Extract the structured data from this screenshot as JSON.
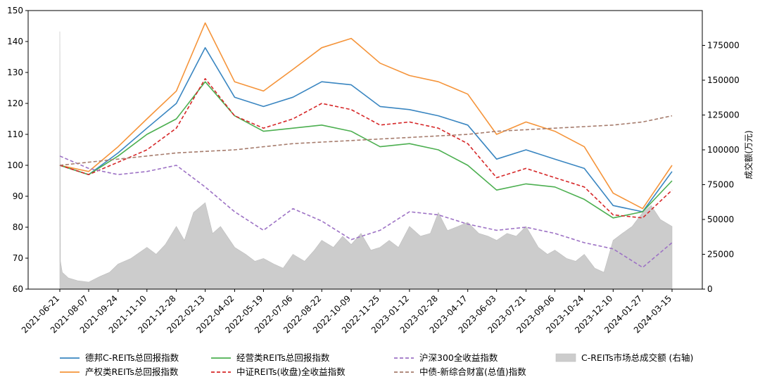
{
  "chart_data": {
    "type": "line",
    "title": "",
    "xlabel": "",
    "ylabel_left": "",
    "ylabel_right": "成交额(万元)",
    "x_ticks": [
      "2021-06-21",
      "2021-08-07",
      "2021-09-24",
      "2021-11-10",
      "2021-12-28",
      "2022-02-13",
      "2022-04-02",
      "2022-05-19",
      "2022-07-06",
      "2022-08-22",
      "2022-10-09",
      "2022-11-25",
      "2023-01-12",
      "2023-02-28",
      "2023-04-17",
      "2023-06-03",
      "2023-07-21",
      "2023-09-06",
      "2023-10-24",
      "2023-12-10",
      "2024-01-27",
      "2024-03-15"
    ],
    "y_left": {
      "min": 60,
      "max": 150,
      "ticks": [
        60,
        70,
        80,
        90,
        100,
        110,
        120,
        130,
        140,
        150
      ]
    },
    "y_right": {
      "min": 0,
      "max": 200000,
      "ticks": [
        0,
        25000,
        50000,
        75000,
        100000,
        125000,
        150000,
        175000
      ]
    },
    "legend_position": "bottom",
    "series": [
      {
        "name": "德邦C-REITs总回报指数",
        "color": "#3a86c1",
        "style": "solid",
        "x": [
          "2021-06-21",
          "2021-08-07",
          "2021-09-24",
          "2021-11-10",
          "2021-12-28",
          "2022-02-13",
          "2022-04-02",
          "2022-05-19",
          "2022-07-06",
          "2022-08-22",
          "2022-10-09",
          "2022-11-25",
          "2023-01-12",
          "2023-02-28",
          "2023-04-17",
          "2023-06-03",
          "2023-07-21",
          "2023-09-06",
          "2023-10-24",
          "2023-12-10",
          "2024-01-27",
          "2024-03-15"
        ],
        "y": [
          100,
          97,
          104,
          112,
          120,
          138,
          122,
          119,
          122,
          127,
          126,
          119,
          118,
          116,
          113,
          102,
          105,
          102,
          99,
          87,
          85,
          98
        ]
      },
      {
        "name": "产权类REITs总回报指数",
        "color": "#f5943a",
        "style": "solid",
        "x": [
          "2021-06-21",
          "2021-08-07",
          "2021-09-24",
          "2021-11-10",
          "2021-12-28",
          "2022-02-13",
          "2022-04-02",
          "2022-05-19",
          "2022-07-06",
          "2022-08-22",
          "2022-10-09",
          "2022-11-25",
          "2023-01-12",
          "2023-02-28",
          "2023-04-17",
          "2023-06-03",
          "2023-07-21",
          "2023-09-06",
          "2023-10-24",
          "2023-12-10",
          "2024-01-27",
          "2024-03-15"
        ],
        "y": [
          100,
          98,
          106,
          115,
          124,
          146,
          127,
          124,
          131,
          138,
          141,
          133,
          129,
          127,
          123,
          110,
          114,
          111,
          106,
          91,
          86,
          100
        ]
      },
      {
        "name": "经营类REITs总回报指数",
        "color": "#4caf50",
        "style": "solid",
        "x": [
          "2021-06-21",
          "2021-08-07",
          "2021-09-24",
          "2021-11-10",
          "2021-12-28",
          "2022-02-13",
          "2022-04-02",
          "2022-05-19",
          "2022-07-06",
          "2022-08-22",
          "2022-10-09",
          "2022-11-25",
          "2023-01-12",
          "2023-02-28",
          "2023-04-17",
          "2023-06-03",
          "2023-07-21",
          "2023-09-06",
          "2023-10-24",
          "2023-12-10",
          "2024-01-27",
          "2024-03-15"
        ],
        "y": [
          100,
          97,
          103,
          110,
          115,
          127,
          116,
          111,
          112,
          113,
          111,
          106,
          107,
          105,
          100,
          92,
          94,
          93,
          89,
          83,
          85,
          95
        ]
      },
      {
        "name": "中证REITs(收盘)全收益指数",
        "color": "#d62728",
        "style": "dashed",
        "x": [
          "2021-06-21",
          "2021-08-07",
          "2021-09-24",
          "2021-11-10",
          "2021-12-28",
          "2022-02-13",
          "2022-04-02",
          "2022-05-19",
          "2022-07-06",
          "2022-08-22",
          "2022-10-09",
          "2022-11-25",
          "2023-01-12",
          "2023-02-28",
          "2023-04-17",
          "2023-06-03",
          "2023-07-21",
          "2023-09-06",
          "2023-10-24",
          "2023-12-10",
          "2024-01-27",
          "2024-03-15"
        ],
        "y": [
          100,
          97,
          101,
          105,
          112,
          128,
          116,
          112,
          115,
          120,
          118,
          113,
          114,
          112,
          107,
          96,
          99,
          96,
          93,
          84,
          83,
          92
        ]
      },
      {
        "name": "沪深300全收益指数",
        "color": "#9d72c5",
        "style": "dashed",
        "x": [
          "2021-06-21",
          "2021-08-07",
          "2021-09-24",
          "2021-11-10",
          "2021-12-28",
          "2022-02-13",
          "2022-04-02",
          "2022-05-19",
          "2022-07-06",
          "2022-08-22",
          "2022-10-09",
          "2022-11-25",
          "2023-01-12",
          "2023-02-28",
          "2023-04-17",
          "2023-06-03",
          "2023-07-21",
          "2023-09-06",
          "2023-10-24",
          "2023-12-10",
          "2024-01-27",
          "2024-03-15"
        ],
        "y": [
          103,
          99,
          97,
          98,
          100,
          93,
          85,
          79,
          86,
          82,
          76,
          79,
          85,
          84,
          81,
          79,
          80,
          78,
          75,
          73,
          67,
          75
        ]
      },
      {
        "name": "中债-新综合财富(总值)指数",
        "color": "#a67c6d",
        "style": "dashed",
        "x": [
          "2021-06-21",
          "2021-08-07",
          "2021-09-24",
          "2021-11-10",
          "2021-12-28",
          "2022-02-13",
          "2022-04-02",
          "2022-05-19",
          "2022-07-06",
          "2022-08-22",
          "2022-10-09",
          "2022-11-25",
          "2023-01-12",
          "2023-02-28",
          "2023-04-17",
          "2023-06-03",
          "2023-07-21",
          "2023-09-06",
          "2023-10-24",
          "2023-12-10",
          "2024-01-27",
          "2024-03-15"
        ],
        "y": [
          100,
          101,
          102,
          103,
          104,
          104.5,
          105,
          106,
          107,
          107.5,
          108,
          108.5,
          109,
          109.5,
          110,
          111,
          111.5,
          112,
          112.5,
          113,
          114,
          116
        ]
      }
    ],
    "area_series": {
      "name": "C-REITs市场总成交额 (右轴)",
      "color": "#cccccc",
      "axis": "right",
      "x": [
        "2021-06-21",
        "2021-06-22",
        "2021-06-25",
        "2021-07-05",
        "2021-07-20",
        "2021-08-07",
        "2021-08-25",
        "2021-09-10",
        "2021-09-24",
        "2021-10-15",
        "2021-11-10",
        "2021-11-25",
        "2021-12-10",
        "2021-12-28",
        "2022-01-10",
        "2022-01-25",
        "2022-02-13",
        "2022-02-25",
        "2022-03-10",
        "2022-04-02",
        "2022-04-20",
        "2022-05-05",
        "2022-05-19",
        "2022-06-05",
        "2022-06-20",
        "2022-07-06",
        "2022-07-25",
        "2022-08-10",
        "2022-08-22",
        "2022-09-10",
        "2022-09-25",
        "2022-10-09",
        "2022-10-25",
        "2022-11-10",
        "2022-11-25",
        "2022-12-10",
        "2022-12-25",
        "2023-01-12",
        "2023-01-30",
        "2023-02-15",
        "2023-02-28",
        "2023-03-15",
        "2023-04-01",
        "2023-04-17",
        "2023-05-05",
        "2023-05-20",
        "2023-06-03",
        "2023-06-20",
        "2023-07-05",
        "2023-07-21",
        "2023-08-10",
        "2023-08-25",
        "2023-09-06",
        "2023-09-25",
        "2023-10-10",
        "2023-10-24",
        "2023-11-10",
        "2023-11-25",
        "2023-12-10",
        "2023-12-25",
        "2024-01-10",
        "2024-01-27",
        "2024-02-10",
        "2024-02-25",
        "2024-03-15"
      ],
      "y": [
        185000,
        20000,
        12000,
        8000,
        6000,
        5000,
        9000,
        12000,
        18000,
        22000,
        30000,
        25000,
        32000,
        45000,
        35000,
        55000,
        62000,
        40000,
        45000,
        30000,
        25000,
        20000,
        22000,
        18000,
        15000,
        25000,
        20000,
        28000,
        35000,
        30000,
        38000,
        32000,
        40000,
        28000,
        30000,
        35000,
        30000,
        45000,
        38000,
        40000,
        55000,
        42000,
        45000,
        48000,
        40000,
        38000,
        35000,
        40000,
        38000,
        45000,
        30000,
        25000,
        28000,
        22000,
        20000,
        25000,
        15000,
        12000,
        35000,
        40000,
        45000,
        55000,
        60000,
        50000,
        45000
      ]
    }
  }
}
